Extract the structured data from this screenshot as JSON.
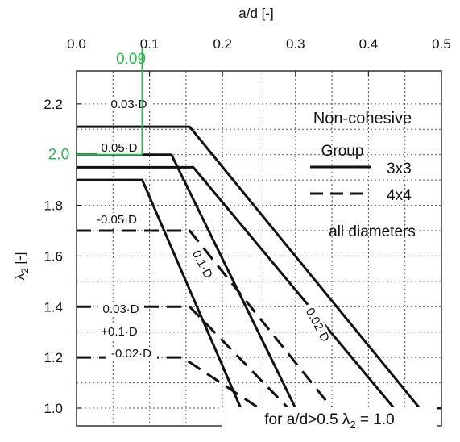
{
  "chart_data": {
    "type": "line",
    "title": "Non-cohesive",
    "xlabel": "a/d [-]",
    "ylabel": "λ2 [-]",
    "xlim": [
      0.0,
      0.5
    ],
    "ylim": [
      0.93,
      2.33
    ],
    "x_ticks": [
      "0.0",
      "0.1",
      "0.2",
      "0.3",
      "0.4",
      "0.5"
    ],
    "y_ticks": [
      "1.0",
      "1.2",
      "1.4",
      "1.6",
      "1.8",
      "2.0",
      "2.2"
    ],
    "grid": true,
    "legend": {
      "title": "Group",
      "placement": "top-right",
      "entries": [
        {
          "label": "3x3",
          "style": "solid"
        },
        {
          "label": "4x4",
          "style": "dashed"
        }
      ],
      "note": "all diameters"
    },
    "series": [
      {
        "name": "0.03·D",
        "group": "3x3",
        "style": "solid",
        "x": [
          0.0,
          0.155,
          0.47,
          0.5
        ],
        "y": [
          2.11,
          2.11,
          1.0,
          1.0
        ]
      },
      {
        "name": "0.02·D",
        "group": "3x3",
        "style": "solid",
        "x": [
          0.0,
          0.16,
          0.435,
          0.5
        ],
        "y": [
          1.95,
          1.95,
          1.0,
          1.0
        ]
      },
      {
        "name": "0.05·D",
        "group": "3x3",
        "style": "solid",
        "x": [
          0.0,
          0.13,
          0.3,
          0.5
        ],
        "y": [
          2.0,
          2.0,
          1.0,
          1.0
        ]
      },
      {
        "name": "0.1·D",
        "group": "3x3",
        "style": "solid",
        "x": [
          0.0,
          0.09,
          0.225,
          0.5
        ],
        "y": [
          1.9,
          1.9,
          1.0,
          1.0
        ]
      },
      {
        "name": "0.05·D",
        "group": "4x4",
        "style": "dashed",
        "x": [
          0.0,
          0.155,
          0.35,
          0.5
        ],
        "y": [
          1.7,
          1.7,
          1.0,
          1.0
        ]
      },
      {
        "name": "0.03·D +0.1·D",
        "group": "4x4",
        "style": "dashed",
        "x": [
          0.0,
          0.155,
          0.29,
          0.5
        ],
        "y": [
          1.4,
          1.4,
          1.0,
          1.0
        ]
      },
      {
        "name": "0.02·D",
        "group": "4x4",
        "style": "dashed",
        "x": [
          0.0,
          0.145,
          0.25,
          0.5
        ],
        "y": [
          1.2,
          1.2,
          1.0,
          1.0
        ]
      }
    ],
    "curve_labels": [
      {
        "text": "0.03·D",
        "series": 0
      },
      {
        "text": "0.05·D",
        "series": 2
      },
      {
        "text": "-0.05·D",
        "series": 4
      },
      {
        "text": "0.1·D",
        "series": 3
      },
      {
        "text": "0.02·D",
        "series": 1
      },
      {
        "text": "0.03·D",
        "series": 5
      },
      {
        "text": "+0.1·D",
        "series": 5
      },
      {
        "text": "-0.02·D",
        "series": 6
      }
    ],
    "annotations": [
      {
        "text": "0.09",
        "x": 0.09,
        "color": "#2db84d"
      },
      {
        "text": "2.0",
        "y": 2.0,
        "color": "#2db84d"
      },
      {
        "text": "for a/d>0.5  λ2 = 1.0"
      }
    ]
  }
}
